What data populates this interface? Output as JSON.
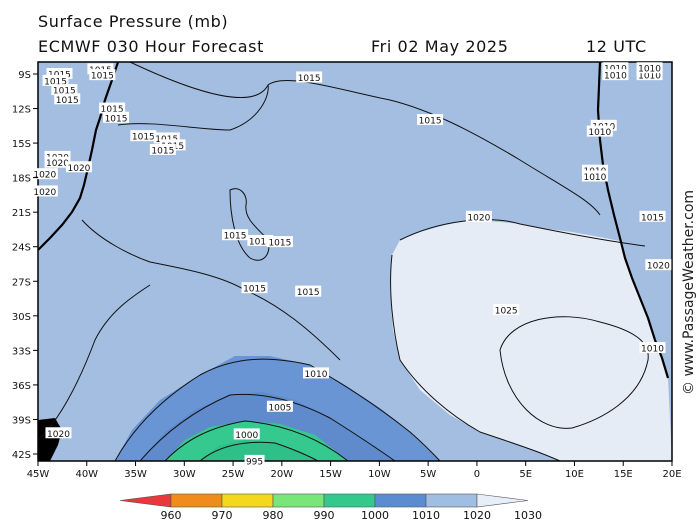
{
  "header": {
    "title": "Surface Pressure (mb)",
    "model": "ECMWF 030 Hour Forecast",
    "date": "Fri 02 May 2025",
    "time": "12 UTC"
  },
  "watermark": "© www.PassageWeather.com",
  "lat_labels": [
    "9S",
    "12S",
    "15S",
    "18S",
    "21S",
    "24S",
    "27S",
    "30S",
    "33S",
    "36S",
    "39S",
    "42S"
  ],
  "lon_labels": [
    "45W",
    "40W",
    "35W",
    "30W",
    "25W",
    "20W",
    "15W",
    "10W",
    "5W",
    "0",
    "5E",
    "10E",
    "15E",
    "20E"
  ],
  "colorbar": {
    "values": [
      "960",
      "970",
      "980",
      "990",
      "1000",
      "1010",
      "1020",
      "1030"
    ],
    "colors": [
      "#e8383c",
      "#f08c1e",
      "#f5d81e",
      "#78e678",
      "#34c88c",
      "#5a8cd2",
      "#a0bee1",
      "#e6eef8"
    ]
  },
  "fill_colors": {
    "light": "#e6ecf6",
    "mid": "#a3bee0",
    "blue": "#6a95d4",
    "green": "#36c98f",
    "land": "#ffffff"
  },
  "isobar_labels": [
    {
      "text": "1015",
      "lon": -42.8,
      "lat": -9.0
    },
    {
      "text": "1015",
      "lon": -43.2,
      "lat": -9.6
    },
    {
      "text": "1015",
      "lon": -42.3,
      "lat": -10.4
    },
    {
      "text": "1015",
      "lon": -42.0,
      "lat": -11.2
    },
    {
      "text": "1015",
      "lon": -38.6,
      "lat": -8.6
    },
    {
      "text": "1015",
      "lon": -38.4,
      "lat": -9.1
    },
    {
      "text": "1015",
      "lon": -37.4,
      "lat": -12.0
    },
    {
      "text": "1015",
      "lon": -37.0,
      "lat": -12.8
    },
    {
      "text": "1015",
      "lon": -34.2,
      "lat": -14.4
    },
    {
      "text": "1015",
      "lon": -31.8,
      "lat": -14.6
    },
    {
      "text": "1015",
      "lon": -31.2,
      "lat": -15.2
    },
    {
      "text": "1015",
      "lon": -32.2,
      "lat": -15.6
    },
    {
      "text": "1015",
      "lon": -17.2,
      "lat": -9.3
    },
    {
      "text": "1015",
      "lon": -4.8,
      "lat": -13.0
    },
    {
      "text": "1020",
      "lon": -43.0,
      "lat": -16.2
    },
    {
      "text": "1020",
      "lon": -43.0,
      "lat": -16.7
    },
    {
      "text": "1020",
      "lon": -40.8,
      "lat": -17.1
    },
    {
      "text": "1020",
      "lon": -44.3,
      "lat": -17.7
    },
    {
      "text": "1020",
      "lon": -44.3,
      "lat": -19.2
    },
    {
      "text": "1015",
      "lon": -24.8,
      "lat": -23.0
    },
    {
      "text": "1015",
      "lon": -22.2,
      "lat": -23.5
    },
    {
      "text": "1015",
      "lon": -20.2,
      "lat": -23.6
    },
    {
      "text": "1015",
      "lon": -22.8,
      "lat": -27.6
    },
    {
      "text": "1015",
      "lon": -17.3,
      "lat": -27.9
    },
    {
      "text": "1020",
      "lon": 0.2,
      "lat": -21.4
    },
    {
      "text": "1025",
      "lon": 3.0,
      "lat": -29.5
    },
    {
      "text": "1010",
      "lon": -16.5,
      "lat": -35.0
    },
    {
      "text": "1005",
      "lon": -20.2,
      "lat": -37.9
    },
    {
      "text": "1000",
      "lon": -23.6,
      "lat": -40.3
    },
    {
      "text": "995",
      "lon": -22.8,
      "lat": -42.6
    },
    {
      "text": "1020",
      "lon": -42.9,
      "lat": -40.2
    },
    {
      "text": "1010",
      "lon": 14.2,
      "lat": -8.5
    },
    {
      "text": "1010",
      "lon": 14.2,
      "lat": -9.1
    },
    {
      "text": "1010",
      "lon": 17.7,
      "lat": -9.1
    },
    {
      "text": "1010",
      "lon": 17.7,
      "lat": -8.5
    },
    {
      "text": "1010",
      "lon": 13.0,
      "lat": -13.5
    },
    {
      "text": "1010",
      "lon": 12.6,
      "lat": -14.0
    },
    {
      "text": "1010",
      "lon": 12.1,
      "lat": -17.4
    },
    {
      "text": "1010",
      "lon": 12.1,
      "lat": -17.9
    },
    {
      "text": "1015",
      "lon": 18.0,
      "lat": -21.4
    },
    {
      "text": "1020",
      "lon": 18.6,
      "lat": -25.6
    },
    {
      "text": "1010",
      "lon": 18.0,
      "lat": -32.8
    }
  ]
}
